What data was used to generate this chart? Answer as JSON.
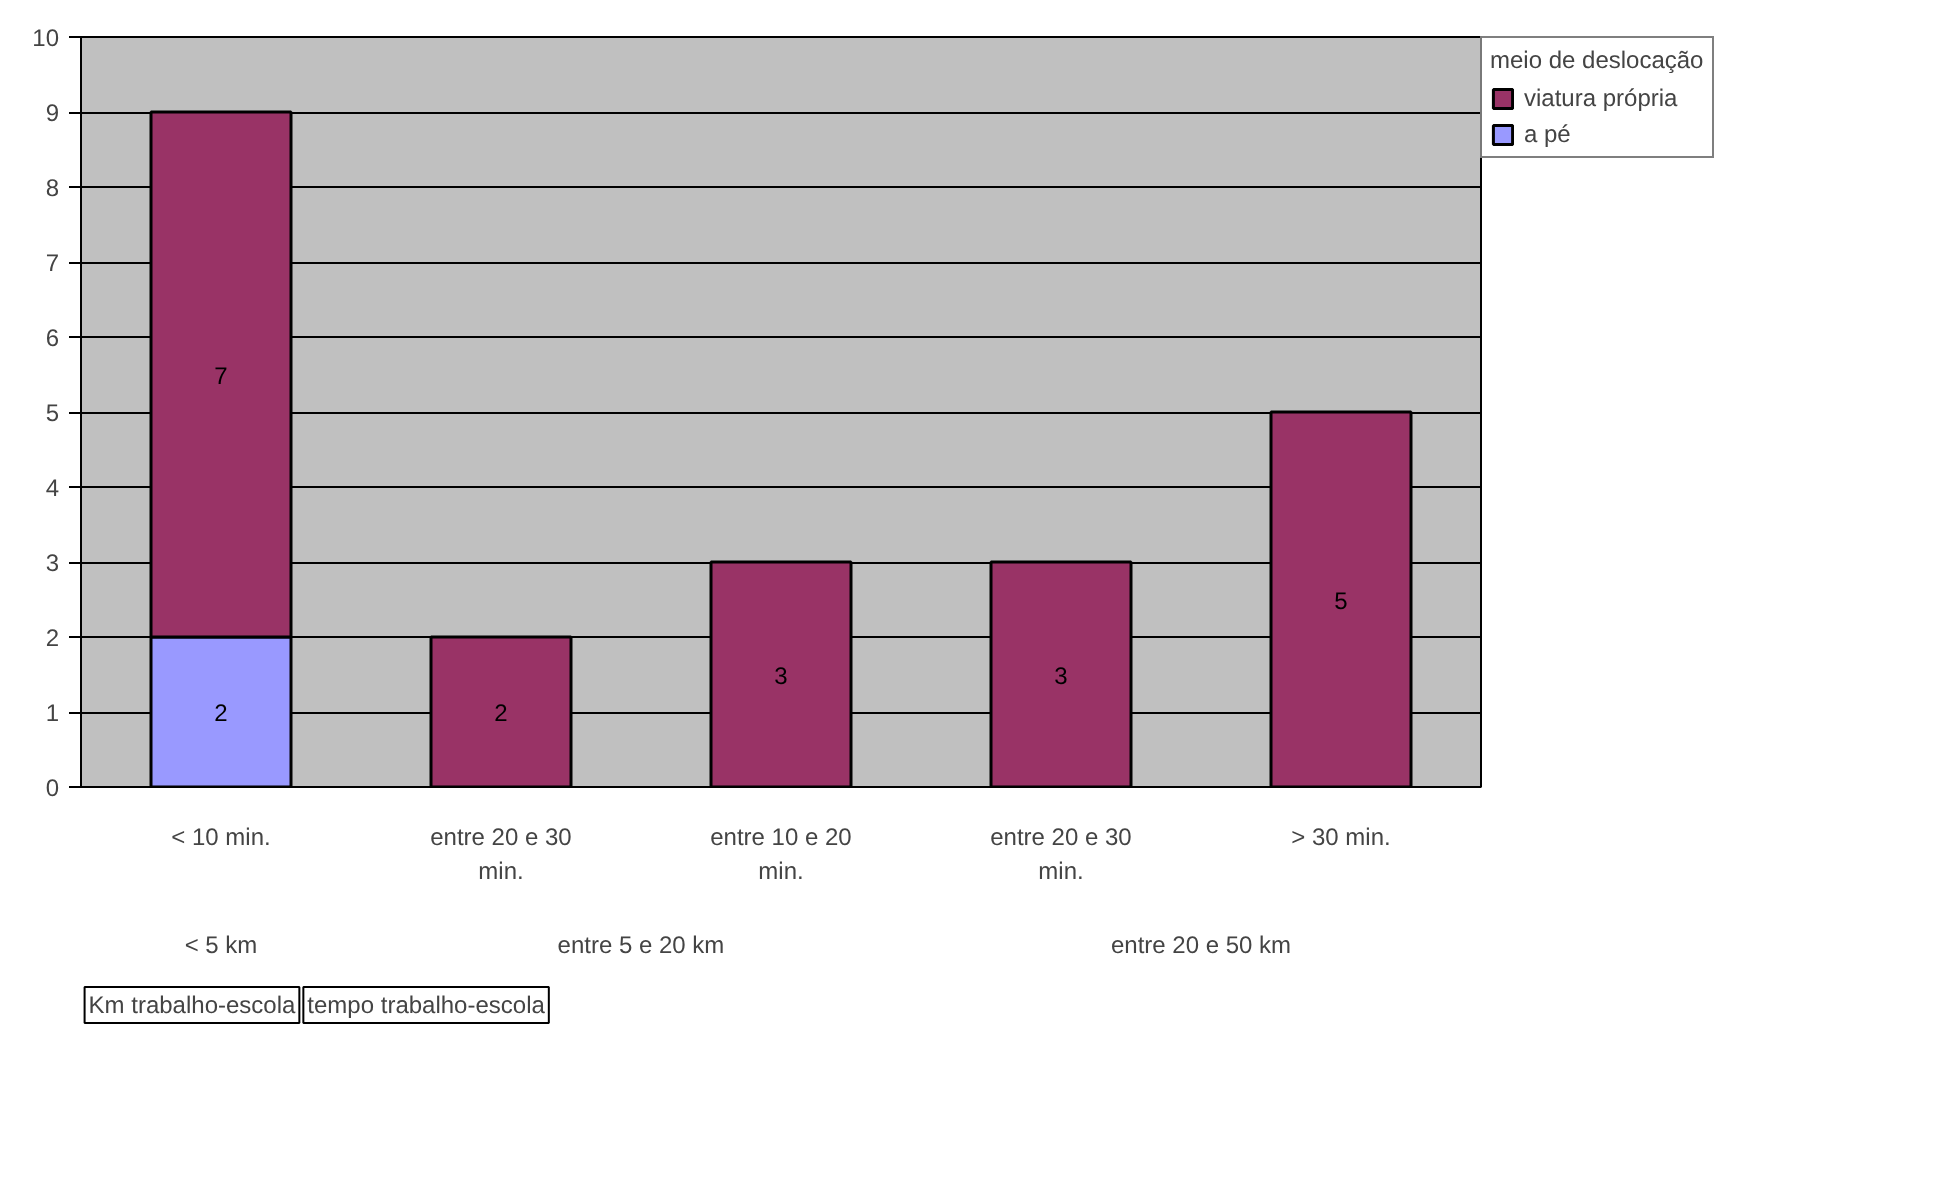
{
  "chart_data": {
    "type": "bar",
    "stacked": true,
    "categories": [
      "< 10 min.",
      "entre 20 e 30 min.",
      "entre 10 e 20 min.",
      "entre 20 e 30 min.",
      "> 30 min."
    ],
    "series": [
      {
        "name": "a pé",
        "color": "#9999ff",
        "values": [
          2,
          null,
          null,
          null,
          null
        ]
      },
      {
        "name": "viatura própria",
        "color": "#993366",
        "values": [
          7,
          2,
          3,
          3,
          5
        ]
      }
    ],
    "ylim": [
      0,
      10
    ],
    "yticks": [
      0,
      1,
      2,
      3,
      4,
      5,
      6,
      7,
      8,
      9,
      10
    ],
    "grid": "y",
    "legend": "right",
    "legend_title": "meio de deslocação",
    "data_labels": true,
    "annotations": [
      "< 5 km",
      "entre 5 e 20 km",
      "entre 20 e 50 km",
      "Km trabalho-escola",
      "tempo trabalho-escola"
    ]
  }
}
